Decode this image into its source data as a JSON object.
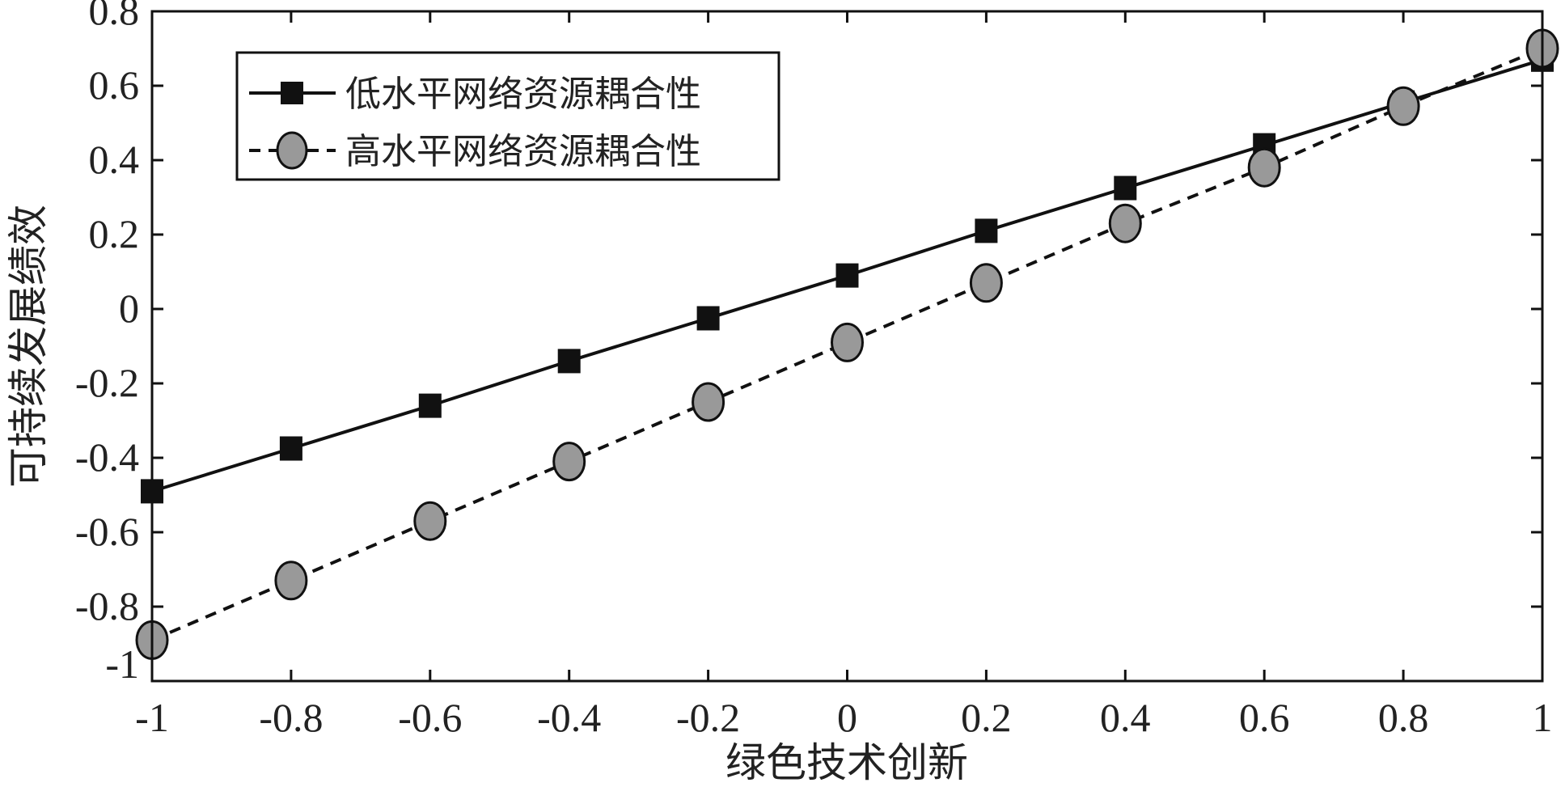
{
  "chart_data": {
    "type": "line",
    "title": "",
    "xlabel": "绿色技术创新",
    "ylabel": "可持续发展绩效",
    "xlim": [
      -1,
      1
    ],
    "ylim": [
      -1,
      0.8
    ],
    "xticks": [
      "-1",
      "-0.8",
      "-0.6",
      "-0.4",
      "-0.2",
      "0",
      "0.2",
      "0.4",
      "0.6",
      "0.8",
      "1"
    ],
    "yticks": [
      "-1",
      "-0.8",
      "-0.6",
      "-0.4",
      "-0.2",
      "0",
      "0.2",
      "0.4",
      "0.6",
      "0.8"
    ],
    "grid": false,
    "legend_position": "top-left",
    "x": [
      -1,
      -0.8,
      -0.6,
      -0.4,
      -0.2,
      0,
      0.2,
      0.4,
      0.6,
      0.8,
      1
    ],
    "series": [
      {
        "name": "低水平网络资源耦合性",
        "style": "solid",
        "marker": "square",
        "color": "#111111",
        "values": [
          -0.49,
          -0.375,
          -0.26,
          -0.14,
          -0.025,
          0.09,
          0.21,
          0.325,
          0.44,
          0.555,
          0.67
        ]
      },
      {
        "name": "高水平网络资源耦合性",
        "style": "dashed",
        "marker": "circle",
        "color": "#999999",
        "values": [
          -0.89,
          -0.73,
          -0.57,
          -0.41,
          -0.25,
          -0.09,
          0.07,
          0.23,
          0.38,
          0.545,
          0.7
        ]
      }
    ]
  }
}
